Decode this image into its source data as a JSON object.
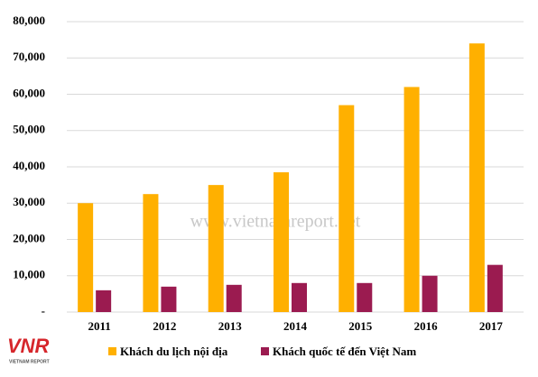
{
  "chart_data": {
    "type": "bar",
    "categories": [
      "2011",
      "2012",
      "2013",
      "2014",
      "2015",
      "2016",
      "2017"
    ],
    "series": [
      {
        "name": "Khách du lịch nội địa",
        "color": "#ffb000",
        "values": [
          30000,
          32500,
          35000,
          38500,
          57000,
          62000,
          74000
        ]
      },
      {
        "name": "Khách quốc tế đến Việt Nam",
        "color": "#9b1b50",
        "values": [
          6000,
          7000,
          7500,
          8000,
          8000,
          10000,
          13000
        ]
      }
    ],
    "ylim": [
      0,
      80000
    ],
    "yticks": [
      {
        "value": 0,
        "label": "-"
      },
      {
        "value": 10000,
        "label": "10,000"
      },
      {
        "value": 20000,
        "label": "20,000"
      },
      {
        "value": 30000,
        "label": "30,000"
      },
      {
        "value": 40000,
        "label": "40,000"
      },
      {
        "value": 50000,
        "label": "50,000"
      },
      {
        "value": 60000,
        "label": "60,000"
      },
      {
        "value": 70000,
        "label": "70,000"
      },
      {
        "value": 80000,
        "label": "80,000"
      }
    ],
    "grid": true,
    "legend": "bottom",
    "watermark": "www.vietnamreport.net",
    "logo": {
      "mark": "VNR",
      "text": "VIETNAM REPORT"
    }
  }
}
